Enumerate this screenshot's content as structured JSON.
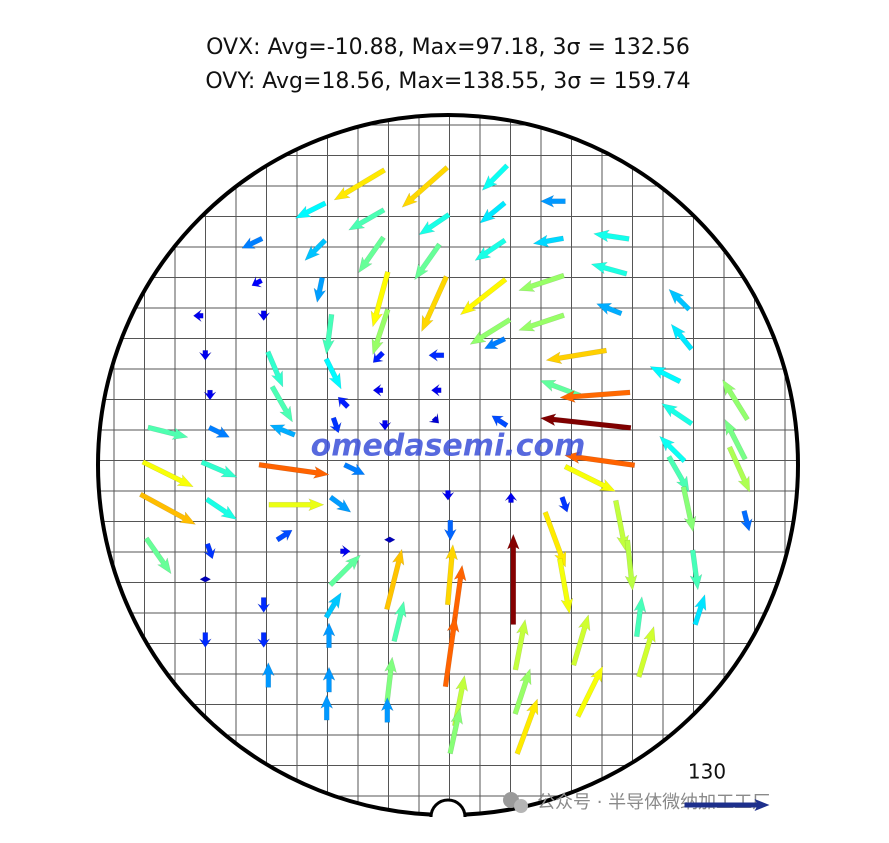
{
  "chart_data": {
    "type": "quiver",
    "title_lines": [
      "OVX: Avg=-10.88, Max=97.18, 3σ = 132.56",
      "OVY: Avg=18.56, Max=138.55, 3σ = 159.74"
    ],
    "xlim": [
      -150,
      150
    ],
    "ylim": [
      -150,
      150
    ],
    "x": [
      -38,
      -10,
      20,
      45,
      -59,
      -35,
      -6,
      19,
      -84,
      -57,
      -33,
      -9,
      18,
      43,
      70,
      -82,
      -55,
      -29,
      -6,
      15,
      40,
      69,
      99,
      -107,
      -79,
      -51,
      -29,
      18,
      40,
      69,
      100,
      -104,
      -74,
      -49,
      -30,
      -5,
      20,
      55,
      93,
      123,
      -102,
      -71,
      -45,
      -30,
      -5,
      48,
      63,
      98,
      123,
      -120,
      -98,
      -71,
      -48,
      -27,
      -5,
      22,
      59,
      96,
      125,
      -120,
      -98,
      -66,
      -40,
      65,
      99,
      61,
      -120,
      -97,
      -65,
      -46,
      0,
      27,
      50,
      74,
      103,
      128,
      -124,
      -102,
      -70,
      -44,
      -25,
      1,
      1,
      28,
      46,
      78,
      106,
      -104,
      -79,
      -49,
      -23,
      4,
      50,
      82,
      108,
      -44,
      -104,
      -79,
      -51,
      -21,
      1,
      31,
      57,
      85,
      -77,
      -51,
      -25,
      5,
      32,
      61,
      -52,
      -26,
      3,
      34
    ],
    "y": [
      120,
      119,
      123,
      113,
      109,
      105,
      103,
      108,
      95,
      92,
      90,
      87,
      92,
      96,
      98,
      78,
      75,
      71,
      69,
      72,
      78,
      84,
      71,
      64,
      64,
      56,
      57,
      57,
      61,
      67,
      55,
      47,
      41,
      39,
      46,
      47,
      52,
      47,
      39,
      28,
      30,
      26,
      27,
      32,
      32,
      33,
      30,
      22,
      11,
      14,
      14,
      15,
      17,
      17,
      19,
      19,
      18,
      7,
      -2,
      -4,
      -2,
      -2,
      -2,
      2,
      -4,
      -6,
      -19,
      -19,
      -17,
      -17,
      -13,
      -14,
      -17,
      -26,
      -19,
      -24,
      -39,
      -37,
      -30,
      -37,
      -32,
      -28,
      -47,
      -49,
      -32,
      -43,
      -45,
      -49,
      -60,
      -60,
      -49,
      -58,
      -52,
      -65,
      -62,
      -45,
      -75,
      -75,
      -73,
      -67,
      -80,
      -77,
      -75,
      -80,
      -90,
      -92,
      -92,
      -101,
      -97,
      -97,
      -104,
      -105,
      -114,
      -112
    ],
    "u": [
      -77,
      -69,
      -38,
      -38,
      -46,
      -54,
      -46,
      -38,
      -31,
      -31,
      -38,
      -38,
      -46,
      -46,
      -54,
      -15,
      -8,
      -23,
      -38,
      -69,
      -69,
      -54,
      -31,
      -15,
      0,
      -8,
      -23,
      -61,
      -69,
      -38,
      -31,
      0,
      23,
      23,
      -15,
      -23,
      -31,
      -92,
      -46,
      -38,
      0,
      31,
      -15,
      -15,
      -15,
      -61,
      -107,
      -46,
      -31,
      61,
      31,
      -38,
      8,
      0,
      8,
      -23,
      -138,
      -38,
      31,
      77,
      54,
      107,
      31,
      -107,
      31,
      77,
      84,
      46,
      84,
      31,
      0,
      0,
      8,
      15,
      15,
      8,
      38,
      8,
      23,
      15,
      0,
      0,
      8,
      0,
      31,
      8,
      8,
      0,
      0,
      23,
      23,
      15,
      15,
      8,
      15,
      46,
      0,
      0,
      0,
      15,
      15,
      15,
      23,
      23,
      0,
      0,
      8,
      15,
      23,
      38,
      0,
      0,
      15,
      31
    ],
    "v": [
      -46,
      -61,
      -38,
      0,
      -23,
      -31,
      -31,
      -31,
      -15,
      -31,
      -54,
      -54,
      -31,
      -8,
      8,
      -8,
      -38,
      -84,
      -84,
      -54,
      -23,
      15,
      31,
      0,
      -15,
      -61,
      -69,
      -38,
      -23,
      15,
      38,
      -15,
      -54,
      -46,
      -15,
      0,
      -15,
      -15,
      23,
      61,
      -15,
      -54,
      15,
      0,
      0,
      23,
      -8,
      31,
      61,
      -15,
      -15,
      15,
      -23,
      -15,
      -8,
      15,
      15,
      38,
      -69,
      -38,
      -23,
      -15,
      -15,
      15,
      -54,
      -38,
      -46,
      -31,
      0,
      -23,
      -15,
      15,
      -23,
      -77,
      -69,
      -31,
      -54,
      -23,
      15,
      0,
      -8,
      -31,
      92,
      138,
      -84,
      -77,
      -61,
      -8,
      -23,
      38,
      92,
      107,
      -84,
      61,
      46,
      46,
      -23,
      -23,
      38,
      61,
      107,
      77,
      77,
      77,
      38,
      38,
      69,
      77,
      69,
      77,
      38,
      38,
      69,
      84
    ],
    "scale_arrow": 130,
    "watermark": "omedasemi.com",
    "source": "公众号 · 半导体微纳加工工厂"
  }
}
